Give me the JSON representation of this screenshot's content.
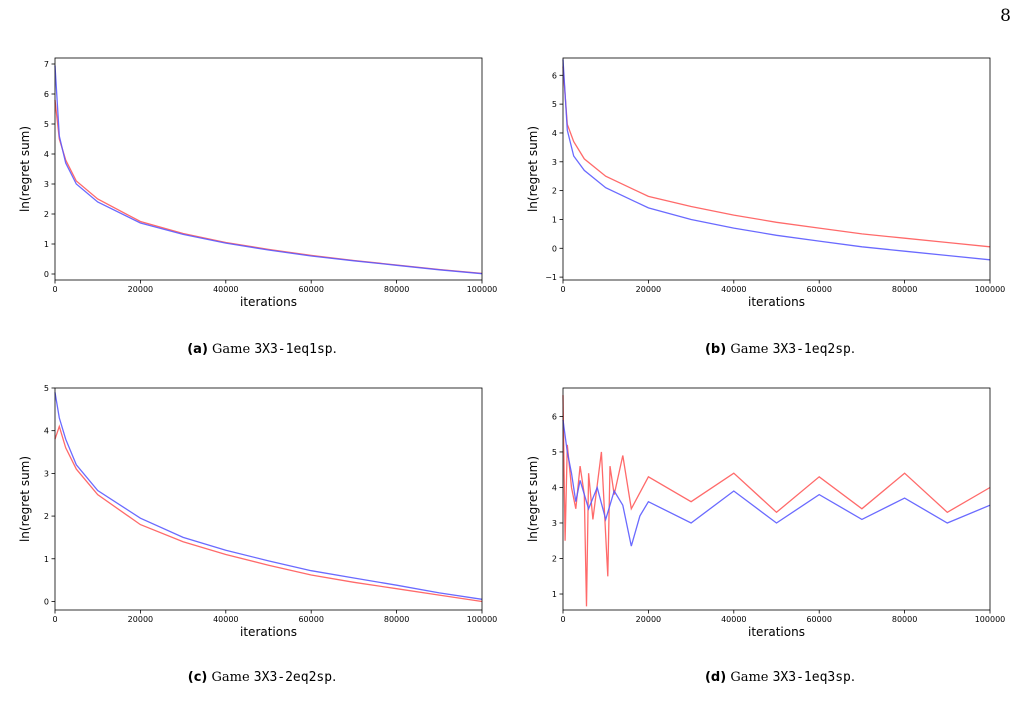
{
  "page_number": "8",
  "colors": {
    "series_a": "#ff5a5a",
    "series_b": "#5a5aff"
  },
  "captions": [
    {
      "label": "(a)",
      "prefix": "Game",
      "game": "3X3-1eq1sp",
      "suffix": "."
    },
    {
      "label": "(b)",
      "prefix": "Game",
      "game": "3X3-1eq2sp",
      "suffix": "."
    },
    {
      "label": "(c)",
      "prefix": "Game",
      "game": "3X3-2eq2sp",
      "suffix": "."
    },
    {
      "label": "(d)",
      "prefix": "Game",
      "game": "3X3-1eq3sp",
      "suffix": "."
    }
  ],
  "chart_data": [
    {
      "type": "line",
      "title": "",
      "xlabel": "iterations",
      "ylabel": "ln(regret sum)",
      "xlim": [
        0,
        100000
      ],
      "ylim": [
        -0.2,
        7.2
      ],
      "xticks": [
        0,
        20000,
        40000,
        60000,
        80000,
        100000
      ],
      "yticks": [
        0,
        1,
        2,
        3,
        4,
        5,
        6,
        7
      ],
      "grid": false,
      "series": [
        {
          "color": "#ff5a5a",
          "x": [
            0,
            1000,
            2500,
            5000,
            10000,
            20000,
            30000,
            40000,
            50000,
            60000,
            70000,
            80000,
            90000,
            100000
          ],
          "y": [
            5.8,
            4.5,
            3.8,
            3.1,
            2.5,
            1.75,
            1.35,
            1.05,
            0.82,
            0.62,
            0.45,
            0.3,
            0.15,
            0.02
          ]
        },
        {
          "color": "#5a5aff",
          "x": [
            0,
            1000,
            2500,
            5000,
            10000,
            20000,
            30000,
            40000,
            50000,
            60000,
            70000,
            80000,
            90000,
            100000
          ],
          "y": [
            6.95,
            4.6,
            3.7,
            3.0,
            2.4,
            1.7,
            1.32,
            1.03,
            0.8,
            0.6,
            0.44,
            0.29,
            0.14,
            0.01
          ]
        }
      ]
    },
    {
      "type": "line",
      "title": "",
      "xlabel": "iterations",
      "ylabel": "ln(regret sum)",
      "xlim": [
        0,
        100000
      ],
      "ylim": [
        -1.1,
        6.6
      ],
      "xticks": [
        0,
        20000,
        40000,
        60000,
        80000,
        100000
      ],
      "yticks": [
        -1,
        0,
        1,
        2,
        3,
        4,
        5,
        6
      ],
      "grid": false,
      "series": [
        {
          "color": "#ff5a5a",
          "x": [
            0,
            1000,
            2500,
            5000,
            10000,
            20000,
            30000,
            40000,
            50000,
            60000,
            70000,
            80000,
            90000,
            100000
          ],
          "y": [
            6.3,
            4.3,
            3.7,
            3.1,
            2.5,
            1.8,
            1.45,
            1.15,
            0.9,
            0.7,
            0.5,
            0.35,
            0.2,
            0.05
          ]
        },
        {
          "color": "#5a5aff",
          "x": [
            0,
            1000,
            2500,
            5000,
            10000,
            20000,
            30000,
            40000,
            50000,
            60000,
            70000,
            80000,
            90000,
            100000
          ],
          "y": [
            6.55,
            4.1,
            3.2,
            2.7,
            2.1,
            1.4,
            1.0,
            0.7,
            0.45,
            0.25,
            0.05,
            -0.1,
            -0.25,
            -0.4
          ]
        }
      ]
    },
    {
      "type": "line",
      "title": "",
      "xlabel": "iterations",
      "ylabel": "ln(regret sum)",
      "xlim": [
        0,
        100000
      ],
      "ylim": [
        -0.2,
        5.0
      ],
      "xticks": [
        0,
        20000,
        40000,
        60000,
        80000,
        100000
      ],
      "yticks": [
        0,
        1,
        2,
        3,
        4,
        5
      ],
      "grid": false,
      "series": [
        {
          "color": "#ff5a5a",
          "x": [
            0,
            1000,
            2500,
            5000,
            10000,
            20000,
            30000,
            40000,
            50000,
            60000,
            70000,
            80000,
            90000,
            100000
          ],
          "y": [
            3.8,
            4.1,
            3.6,
            3.1,
            2.5,
            1.8,
            1.4,
            1.1,
            0.85,
            0.62,
            0.45,
            0.3,
            0.15,
            0.0
          ]
        },
        {
          "color": "#5a5aff",
          "x": [
            0,
            1000,
            2500,
            5000,
            10000,
            20000,
            30000,
            40000,
            50000,
            60000,
            70000,
            80000,
            90000,
            100000
          ],
          "y": [
            4.9,
            4.3,
            3.8,
            3.2,
            2.6,
            1.95,
            1.5,
            1.2,
            0.95,
            0.72,
            0.55,
            0.38,
            0.2,
            0.05
          ]
        }
      ]
    },
    {
      "type": "line",
      "title": "",
      "xlabel": "iterations",
      "ylabel": "ln(regret sum)",
      "xlim": [
        0,
        100000
      ],
      "ylim": [
        0.55,
        6.8
      ],
      "xticks": [
        0,
        20000,
        40000,
        60000,
        80000,
        100000
      ],
      "yticks": [
        1,
        2,
        3,
        4,
        5,
        6
      ],
      "grid": false,
      "series": [
        {
          "color": "#ff5a5a",
          "x": [
            0,
            500,
            1000,
            2000,
            3000,
            4000,
            5000,
            5500,
            6000,
            7000,
            9000,
            10500,
            11000,
            12000,
            14000,
            16000,
            20000,
            30000,
            40000,
            50000,
            60000,
            70000,
            80000,
            90000,
            100000
          ],
          "y": [
            6.6,
            2.5,
            5.2,
            4.0,
            3.4,
            4.6,
            3.8,
            0.65,
            4.4,
            3.1,
            5.0,
            1.5,
            4.6,
            3.8,
            4.9,
            3.4,
            4.3,
            3.6,
            4.4,
            3.3,
            4.3,
            3.4,
            4.4,
            3.3,
            4.0
          ]
        },
        {
          "color": "#5a5aff",
          "x": [
            0,
            1000,
            2000,
            3000,
            4000,
            6000,
            8000,
            10000,
            12000,
            14000,
            16000,
            18000,
            20000,
            30000,
            40000,
            50000,
            60000,
            70000,
            80000,
            90000,
            100000
          ],
          "y": [
            5.9,
            5.0,
            4.4,
            3.6,
            4.2,
            3.4,
            4.0,
            3.1,
            3.9,
            3.5,
            2.35,
            3.2,
            3.6,
            3.0,
            3.9,
            3.0,
            3.8,
            3.1,
            3.7,
            3.0,
            3.5
          ]
        }
      ]
    }
  ]
}
